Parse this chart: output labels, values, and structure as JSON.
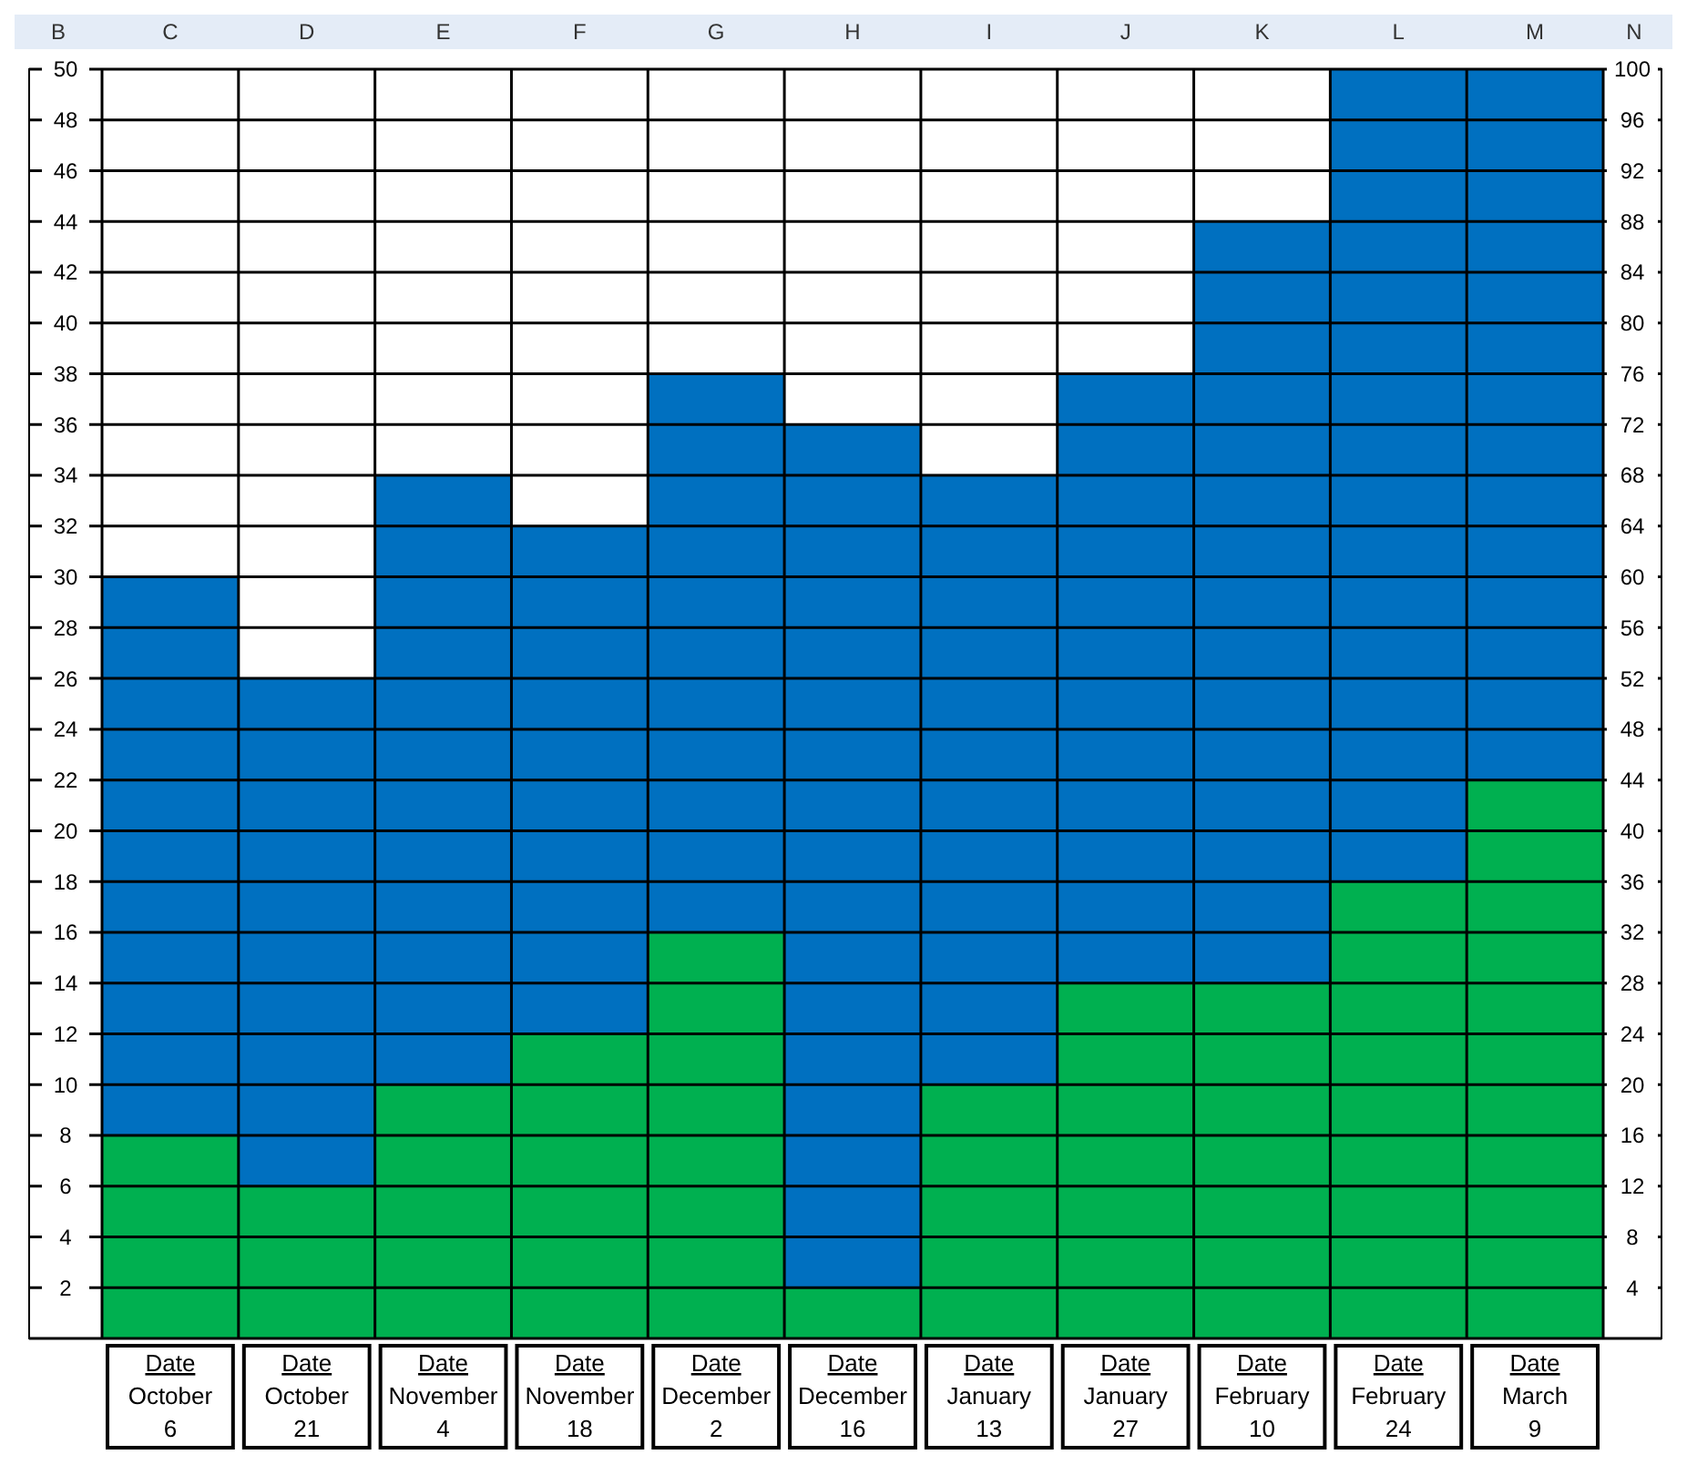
{
  "chart_data": {
    "type": "bar",
    "stacked": true,
    "categories": [
      "Date\nOctober\n6",
      "Date\nOctober\n21",
      "Date\nNovember\n4",
      "Date\nNovember\n18",
      "Date\nDecember\n2",
      "Date\nDecember\n16",
      "Date\nJanuary\n13",
      "Date\nJanuary\n27",
      "Date\nFebruary\n10",
      "Date\nFebruary\n24",
      "Date\nMarch\n9"
    ],
    "series": [
      {
        "color": "#00b050",
        "values": [
          8,
          6,
          10,
          12,
          16,
          2,
          10,
          14,
          14,
          18,
          22
        ]
      },
      {
        "color": "#0070c0",
        "values": [
          22,
          20,
          24,
          20,
          22,
          34,
          24,
          24,
          30,
          32,
          28
        ]
      }
    ],
    "ylim": [
      0,
      50
    ],
    "yticks": [
      2,
      4,
      6,
      8,
      10,
      12,
      14,
      16,
      18,
      20,
      22,
      24,
      26,
      28,
      30,
      32,
      34,
      36,
      38,
      40,
      42,
      44,
      46,
      48,
      50
    ],
    "y2lim": [
      0,
      100
    ],
    "y2ticks": [
      4,
      8,
      12,
      16,
      20,
      24,
      28,
      32,
      36,
      40,
      44,
      48,
      52,
      56,
      60,
      64,
      68,
      72,
      76,
      80,
      84,
      88,
      92,
      96,
      100
    ],
    "grid": true,
    "annotations": [
      "B",
      "C",
      "D",
      "E",
      "F",
      "G",
      "H",
      "I",
      "J",
      "K",
      "L",
      "M",
      "N"
    ]
  }
}
